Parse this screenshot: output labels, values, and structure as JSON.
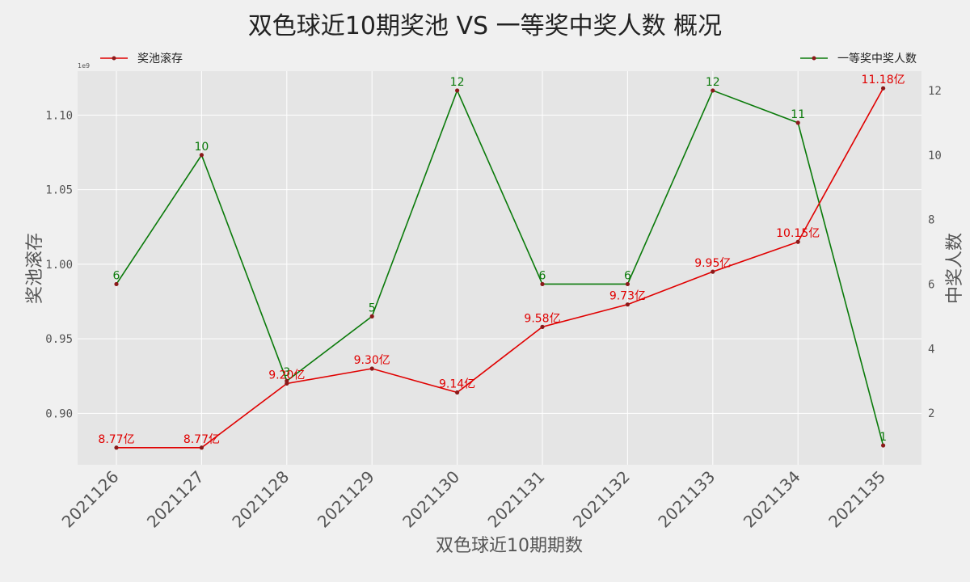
{
  "chart_data": {
    "type": "line",
    "title": "双色球近10期奖池 VS 一等奖中奖人数 概况",
    "xlabel": "双色球近10期期数",
    "ylabel_left": "奖池滚存",
    "ylabel_right": "中奖人数",
    "left_axis_exponent": "1e9",
    "categories": [
      "2021126",
      "2021127",
      "2021128",
      "2021129",
      "2021130",
      "2021131",
      "2021132",
      "2021133",
      "2021134",
      "2021135"
    ],
    "y_left_ticks": [
      "0.90",
      "0.95",
      "1.00",
      "1.05",
      "1.10"
    ],
    "y_right_ticks": [
      "2",
      "4",
      "6",
      "8",
      "10",
      "12"
    ],
    "ylim_left": [
      865500000.0,
      1129500000.0
    ],
    "ylim_right": [
      0.4,
      12.6
    ],
    "grid": true,
    "series": [
      {
        "name": "奖池滚存",
        "axis": "left",
        "color": "#e00000",
        "values": [
          877000000,
          877000000,
          920000000,
          930000000,
          914000000,
          958000000,
          973000000,
          995000000,
          1015000000,
          1118000000
        ],
        "labels": [
          "8.77亿",
          "8.77亿",
          "9.20亿",
          "9.30亿",
          "9.14亿",
          "9.58亿",
          "9.73亿",
          "9.95亿",
          "10.15亿",
          "11.18亿"
        ]
      },
      {
        "name": "一等奖中奖人数",
        "axis": "right",
        "color": "#0a7a0a",
        "values": [
          6,
          10,
          3,
          5,
          12,
          6,
          6,
          12,
          11,
          1
        ],
        "labels": [
          "6",
          "10",
          "3",
          "5",
          "12",
          "6",
          "6",
          "12",
          "11",
          "1"
        ]
      }
    ],
    "legend": {
      "left_series": "top-left",
      "right_series": "top-right"
    }
  }
}
